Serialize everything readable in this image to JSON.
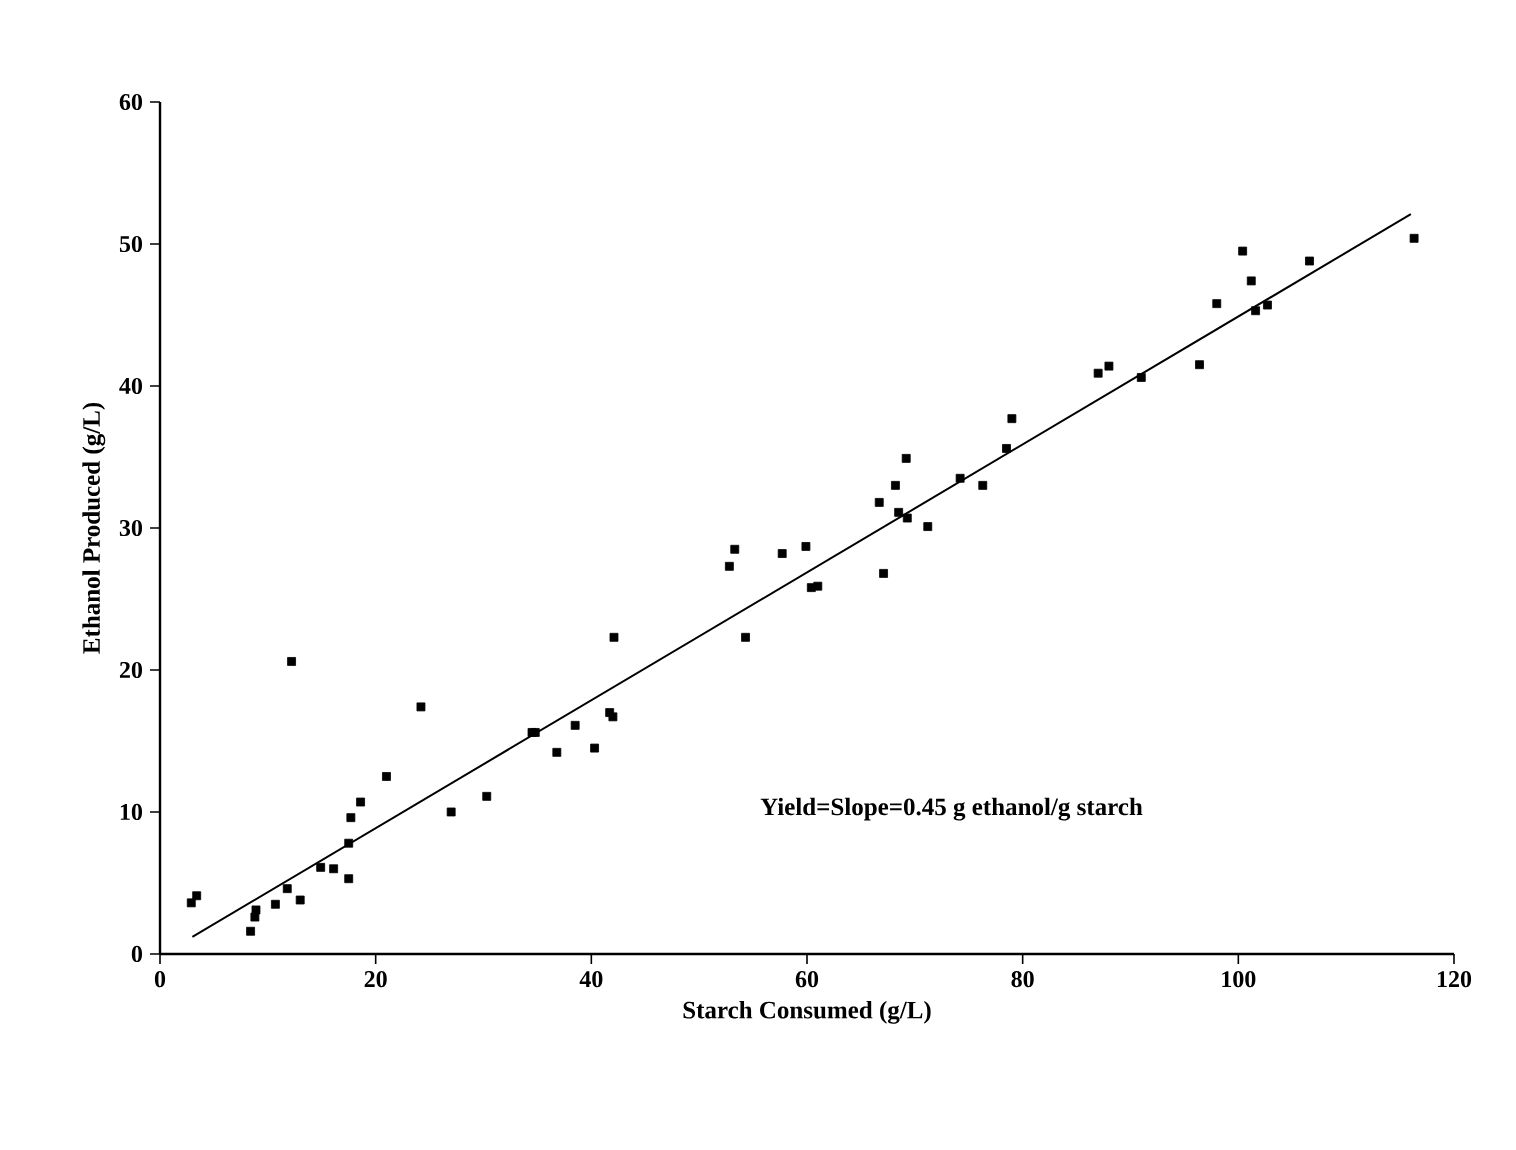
{
  "chart_data": {
    "type": "scatter",
    "xlabel": "Starch Consumed (g/L)",
    "ylabel": "Ethanol Produced (g/L)",
    "xlim": [
      0,
      120
    ],
    "ylim": [
      0,
      60
    ],
    "xticks": [
      0,
      20,
      40,
      60,
      80,
      100,
      120
    ],
    "yticks": [
      0,
      10,
      20,
      30,
      40,
      50,
      60
    ],
    "grid": false,
    "annotations": [
      "Yield=Slope=0.45 g ethanol/g starch"
    ],
    "series": [
      {
        "marker": "square",
        "color": "#000000",
        "x": [
          2.9,
          3.4,
          8.4,
          8.8,
          8.9,
          10.7,
          11.8,
          12.2,
          13,
          14.9,
          16.1,
          17.5,
          17.5,
          17.7,
          18.6,
          21,
          24.2,
          27,
          30.3,
          34.5,
          34.8,
          36.8,
          38.5,
          40.3,
          41.7,
          42,
          42.1,
          52.8,
          53.3,
          54.3,
          57.7,
          59.9,
          60.4,
          61,
          66.7,
          67.1,
          68.2,
          68.5,
          69.2,
          69.3,
          71.2,
          74.2,
          76.3,
          78.5,
          79,
          87,
          88,
          91,
          96.4,
          98,
          100.4,
          101.2,
          101.6,
          102.7,
          106.6,
          116.3
        ],
        "values": [
          3.6,
          4.1,
          1.6,
          2.6,
          3.1,
          3.5,
          4.6,
          20.6,
          3.8,
          6.1,
          6,
          5.3,
          7.8,
          9.6,
          10.7,
          12.5,
          17.4,
          10,
          11.1,
          15.6,
          15.6,
          14.2,
          16.1,
          14.5,
          17,
          16.7,
          22.3,
          27.3,
          28.5,
          22.3,
          28.2,
          28.7,
          25.8,
          25.9,
          31.8,
          26.8,
          33,
          31.1,
          34.9,
          30.7,
          30.1,
          33.5,
          33,
          35.6,
          37.7,
          40.9,
          41.4,
          40.6,
          41.5,
          45.8,
          49.5,
          47.4,
          45.3,
          45.7,
          48.8,
          50.4
        ]
      },
      {
        "type": "line",
        "color": "#000000",
        "x": [
          3,
          116
        ],
        "values": [
          1.2,
          52.1
        ]
      }
    ]
  }
}
